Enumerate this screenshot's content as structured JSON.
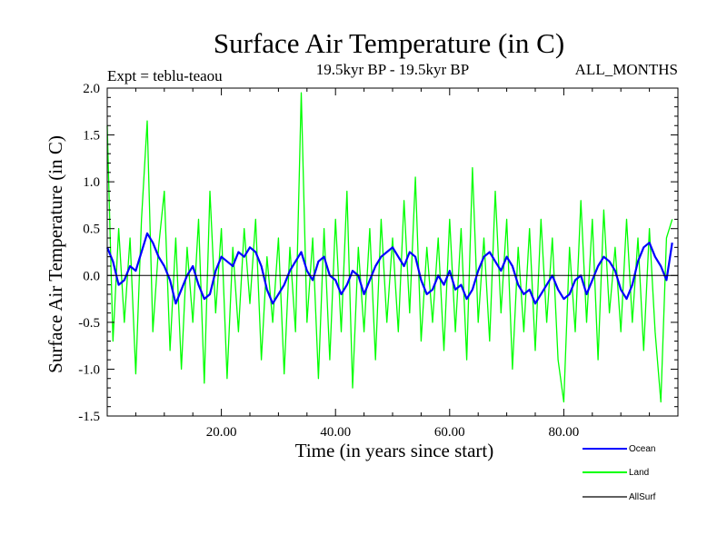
{
  "chart_data": {
    "type": "line",
    "title": "Surface Air Temperature (in C)",
    "subtitle_left": "Expt = teblu-teaou",
    "subtitle_center": "19.5kyr BP - 19.5kyr BP",
    "subtitle_right": "ALL_MONTHS",
    "xlabel": "Time (in years since start)",
    "ylabel": "Surface Air Temperature (in C)",
    "xlim": [
      0,
      100
    ],
    "ylim": [
      -1.5,
      2.0
    ],
    "xticks": [
      20,
      40,
      60,
      80
    ],
    "xtick_labels": [
      "20.00",
      "40.00",
      "60.00",
      "80.00"
    ],
    "yticks": [
      -1.5,
      -1.0,
      -0.5,
      0.0,
      0.5,
      1.0,
      1.5,
      2.0
    ],
    "ytick_labels": [
      "-1.5",
      "-1.0",
      "-0.5",
      "0.0",
      "0.5",
      "1.0",
      "1.5",
      "2.0"
    ],
    "series": [
      {
        "name": "Land",
        "color": "#00ff00",
        "x": [
          0,
          1,
          2,
          3,
          4,
          5,
          6,
          7,
          8,
          9,
          10,
          11,
          12,
          13,
          14,
          15,
          16,
          17,
          18,
          19,
          20,
          21,
          22,
          23,
          24,
          25,
          26,
          27,
          28,
          29,
          30,
          31,
          32,
          33,
          34,
          35,
          36,
          37,
          38,
          39,
          40,
          41,
          42,
          43,
          44,
          45,
          46,
          47,
          48,
          49,
          50,
          51,
          52,
          53,
          54,
          55,
          56,
          57,
          58,
          59,
          60,
          61,
          62,
          63,
          64,
          65,
          66,
          67,
          68,
          69,
          70,
          71,
          72,
          73,
          74,
          75,
          76,
          77,
          78,
          79,
          80,
          81,
          82,
          83,
          84,
          85,
          86,
          87,
          88,
          89,
          90,
          91,
          92,
          93,
          94,
          95,
          96,
          97,
          98,
          99
        ],
        "values": [
          1.6,
          -0.7,
          0.5,
          -0.5,
          0.4,
          -1.05,
          0.6,
          1.65,
          -0.6,
          0.3,
          0.9,
          -0.8,
          0.4,
          -1.0,
          0.3,
          -0.5,
          0.6,
          -1.15,
          0.9,
          -0.4,
          0.5,
          -1.1,
          0.3,
          -0.6,
          0.5,
          -0.3,
          0.6,
          -0.9,
          0.2,
          -0.5,
          0.4,
          -1.05,
          0.3,
          -0.6,
          1.95,
          -0.5,
          0.4,
          -1.1,
          0.5,
          -0.9,
          0.6,
          -0.6,
          0.9,
          -1.2,
          0.3,
          -0.6,
          0.5,
          -0.9,
          0.6,
          -0.5,
          0.4,
          -0.6,
          0.8,
          -0.4,
          1.05,
          -0.7,
          0.3,
          -0.5,
          0.4,
          -0.8,
          0.6,
          -0.6,
          0.5,
          -0.9,
          1.15,
          -0.5,
          0.4,
          -0.7,
          0.9,
          -0.4,
          0.6,
          -1.0,
          0.3,
          -0.6,
          0.5,
          -0.8,
          0.6,
          -0.5,
          0.4,
          -0.9,
          -1.35,
          0.3,
          -0.6,
          0.8,
          -0.5,
          0.6,
          -0.9,
          0.7,
          -0.4,
          0.3,
          -0.6,
          0.6,
          -0.5,
          0.4,
          -0.8,
          0.5,
          -0.6,
          -1.35,
          0.4,
          0.6
        ]
      },
      {
        "name": "Ocean",
        "color": "#0000ff",
        "x": [
          0,
          1,
          2,
          3,
          4,
          5,
          6,
          7,
          8,
          9,
          10,
          11,
          12,
          13,
          14,
          15,
          16,
          17,
          18,
          19,
          20,
          21,
          22,
          23,
          24,
          25,
          26,
          27,
          28,
          29,
          30,
          31,
          32,
          33,
          34,
          35,
          36,
          37,
          38,
          39,
          40,
          41,
          42,
          43,
          44,
          45,
          46,
          47,
          48,
          49,
          50,
          51,
          52,
          53,
          54,
          55,
          56,
          57,
          58,
          59,
          60,
          61,
          62,
          63,
          64,
          65,
          66,
          67,
          68,
          69,
          70,
          71,
          72,
          73,
          74,
          75,
          76,
          77,
          78,
          79,
          80,
          81,
          82,
          83,
          84,
          85,
          86,
          87,
          88,
          89,
          90,
          91,
          92,
          93,
          94,
          95,
          96,
          97,
          98,
          99
        ],
        "values": [
          0.3,
          0.15,
          -0.1,
          -0.05,
          0.1,
          0.05,
          0.25,
          0.45,
          0.35,
          0.2,
          0.1,
          -0.05,
          -0.3,
          -0.15,
          0.0,
          0.1,
          -0.1,
          -0.25,
          -0.2,
          0.05,
          0.2,
          0.15,
          0.1,
          0.25,
          0.2,
          0.3,
          0.25,
          0.1,
          -0.15,
          -0.3,
          -0.2,
          -0.1,
          0.05,
          0.15,
          0.25,
          0.05,
          -0.05,
          0.15,
          0.2,
          0.0,
          -0.05,
          -0.2,
          -0.1,
          0.05,
          0.0,
          -0.2,
          -0.05,
          0.1,
          0.2,
          0.25,
          0.3,
          0.2,
          0.1,
          0.25,
          0.2,
          -0.05,
          -0.2,
          -0.15,
          0.0,
          -0.1,
          0.05,
          -0.15,
          -0.1,
          -0.25,
          -0.15,
          0.05,
          0.2,
          0.25,
          0.15,
          0.05,
          0.2,
          0.1,
          -0.1,
          -0.2,
          -0.15,
          -0.3,
          -0.2,
          -0.1,
          0.0,
          -0.15,
          -0.25,
          -0.2,
          -0.05,
          0.0,
          -0.2,
          -0.05,
          0.1,
          0.2,
          0.15,
          0.05,
          -0.15,
          -0.25,
          -0.1,
          0.15,
          0.3,
          0.35,
          0.2,
          0.1,
          -0.05,
          0.35
        ]
      },
      {
        "name": "AllSurf",
        "color": "#000000",
        "x": [
          0,
          100
        ],
        "values": [
          0.0,
          0.0
        ]
      }
    ],
    "legend": {
      "placement": "bottom-right",
      "entries": [
        "Ocean",
        "Land",
        "AllSurf"
      ]
    }
  }
}
